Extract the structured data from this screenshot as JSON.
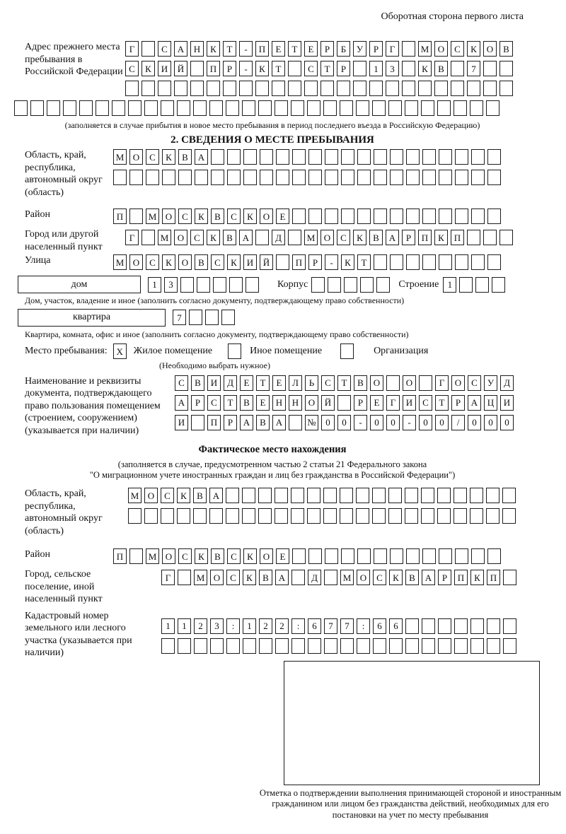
{
  "header": {
    "note": "Оборотная сторона первого листа"
  },
  "section_prev": {
    "label": "Адрес прежнего места пребывания в Российской Федерации",
    "row1": "Г САНКТ-ПЕТЕРБУРГ МОСКОВ",
    "row2": "СКИЙ ПР-КТ СТР 13 КВ 7",
    "row3": "",
    "row4": "",
    "caption": "(заполняется в случае прибытия в новое место пребывания в период последнего въезда в Российскую Федерацию)"
  },
  "section2": {
    "title": "2. СВЕДЕНИЯ О МЕСТЕ ПРЕБЫВАНИЯ",
    "region": {
      "label": "Область, край, республика, автономный округ (область)",
      "row1": "МОСКВА",
      "row2": ""
    },
    "district": {
      "label": "Район",
      "row": "П МОСКВСКОЕ"
    },
    "city": {
      "label": "Город или другой населенный пункт",
      "row": "Г МОСКВА Д МОСКВАРПКП"
    },
    "street": {
      "label": "Улица",
      "row": "МОСКОВСКИЙ ПР-КТ"
    },
    "house": {
      "label": "дом",
      "value": "13",
      "korpus_label": "Корпус",
      "korpus": "",
      "stroenie_label": "Строение",
      "stroenie": "1",
      "caption": "Дом, участок, владение и иное (заполнить согласно документу, подтверждающему право собственности)"
    },
    "apartment": {
      "label": "квартира",
      "value": "7",
      "caption": "Квартира, комната, офис и иное (заполнить согласно документу, подтверждающему право собственности)"
    },
    "stay_place": {
      "label": "Место пребывания:",
      "checked": "X",
      "opt1": "Жилое помещение",
      "opt2": "Иное помещение",
      "opt3": "Организация",
      "hint": "(Необходимо выбрать нужное)"
    },
    "document": {
      "label": "Наименование и реквизиты документа, подтверждающего право пользования помещением (строением, сооружением) (указывается при наличии)",
      "row1": "СВИДЕТЕЛЬСТВО О ГОСУД",
      "row2": "АРСТВЕННОЙ РЕГИСТРАЦИ",
      "row3": "И ПРАВА №00-00-00/000"
    }
  },
  "section_actual": {
    "title": "Фактическое место нахождения",
    "caption1": "(заполняется в случае, предусмотренном частью 2 статьи 21 Федерального закона",
    "caption2": "\"О миграционном учете иностранных граждан и лиц без гражданства в Российской Федерации\")",
    "region": {
      "label": "Область, край, республика, автономный округ (область)",
      "row1": "МОСКВА",
      "row2": ""
    },
    "district": {
      "label": "Район",
      "row": "П МОСКВСКОЕ"
    },
    "city": {
      "label": "Город, сельское поселение, иной населенный пункт",
      "row": "Г МОСКВА Д МОСКВАРПКП"
    },
    "cadastre": {
      "label": "Кадастровый номер земельного или лесного участка (указывается при наличии)",
      "row1": "1123:122:677:66",
      "row2": ""
    }
  },
  "footer": {
    "stamp_caption": "Отметка о подтверждении выполнения принимающей стороной и иностранным гражданином или лицом без гражданства действий, необходимых для его постановки на учет по месту пребывания"
  }
}
